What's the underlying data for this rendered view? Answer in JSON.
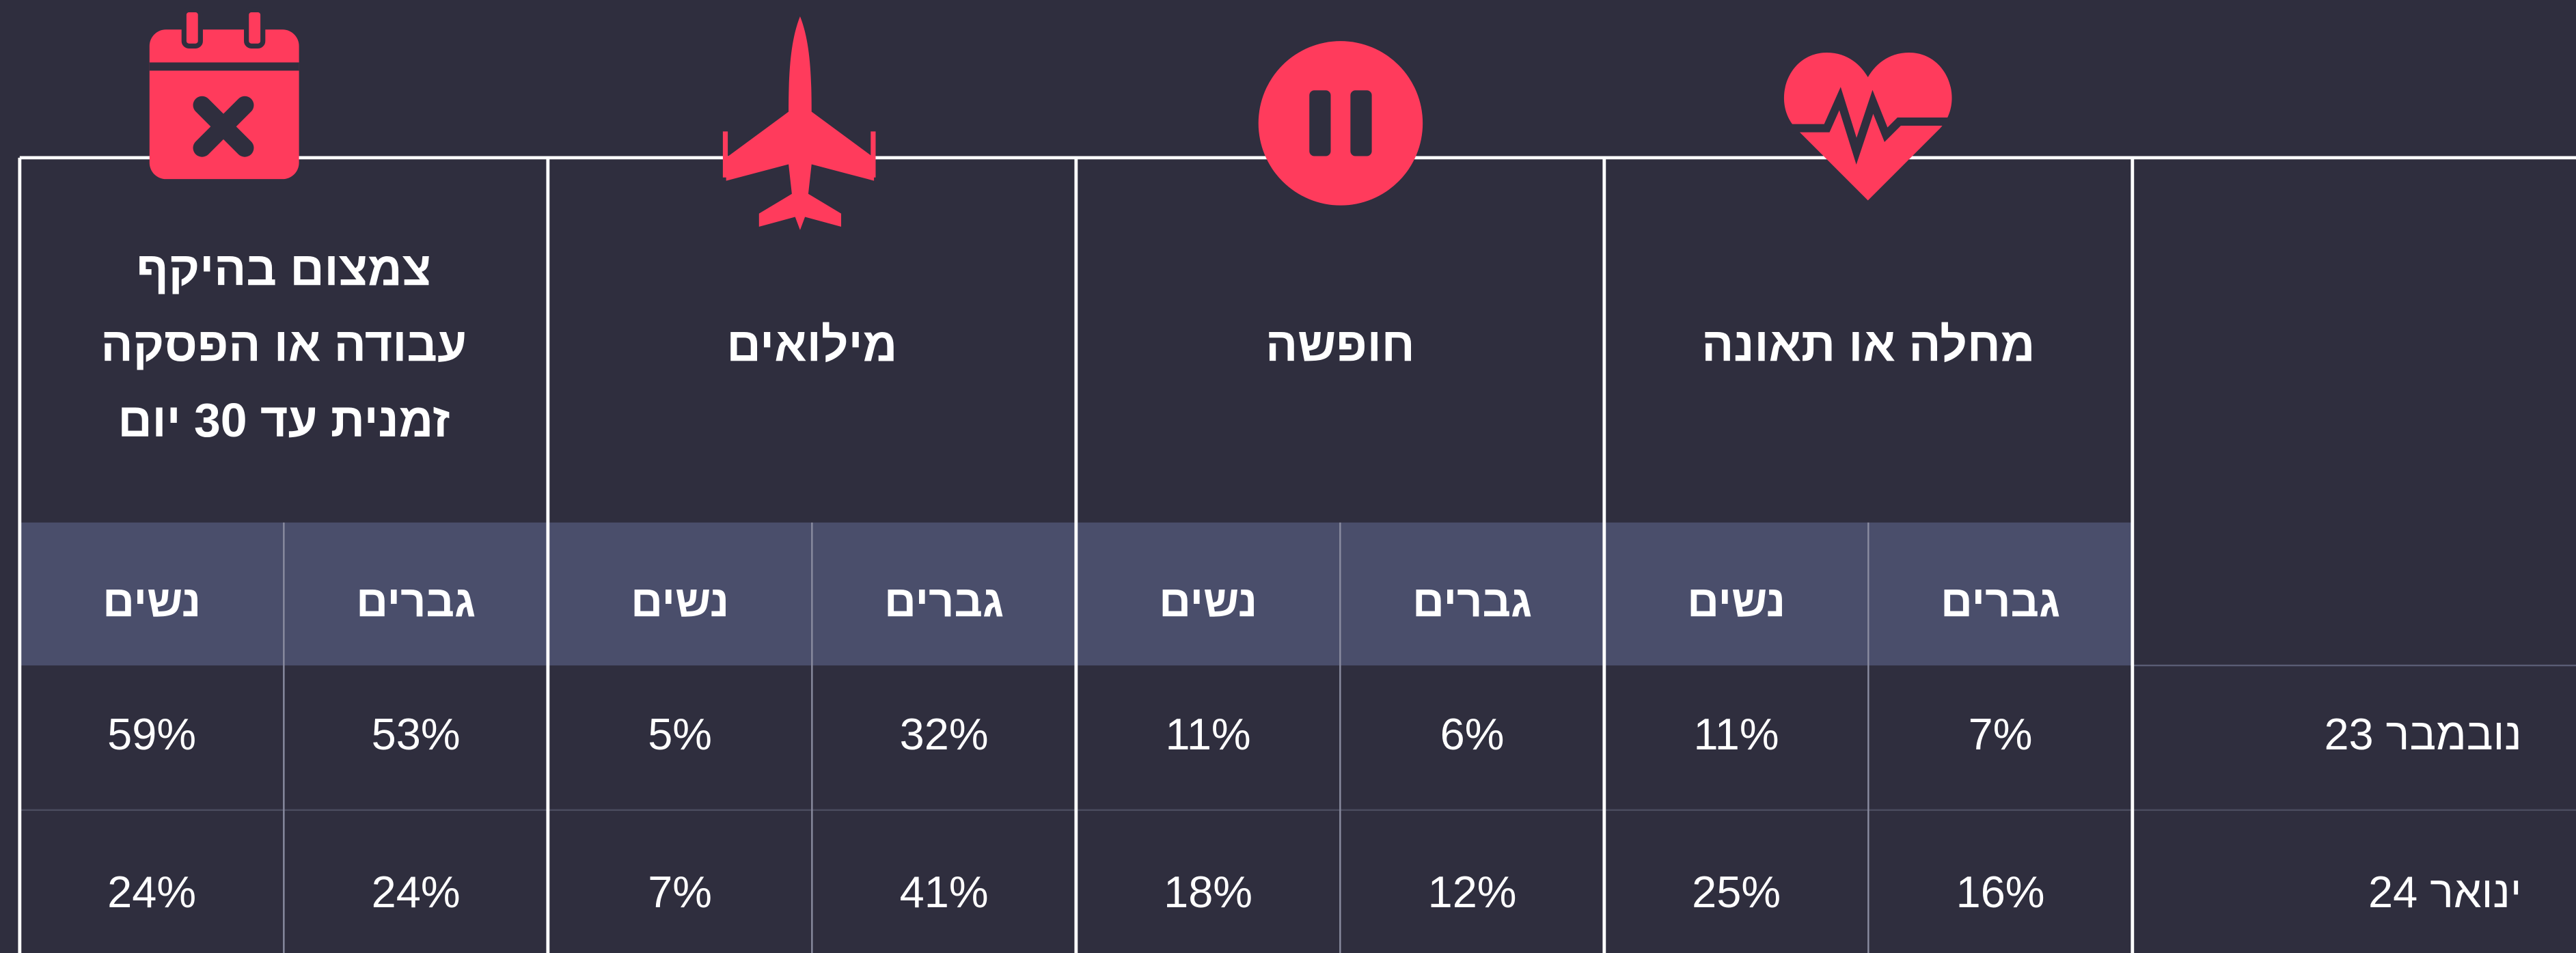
{
  "table": {
    "groups": [
      {
        "label_lines": [
          "מחלה או תאונה"
        ],
        "subheaders": [
          "גברים",
          "נשים"
        ]
      },
      {
        "label_lines": [
          "חופשה"
        ],
        "subheaders": [
          "גברים",
          "נשים"
        ]
      },
      {
        "label_lines": [
          "מילואים"
        ],
        "subheaders": [
          "גברים",
          "נשים"
        ]
      },
      {
        "label_lines": [
          "צמצום בהיקף",
          "עבודה או הפסקה",
          "זמנית עד 30 יום"
        ],
        "subheaders": [
          "גברים",
          "נשים"
        ]
      }
    ],
    "rows": [
      {
        "label": "נובמבר 23",
        "cells": [
          [
            "7%",
            "11%"
          ],
          [
            "6%",
            "11%"
          ],
          [
            "32%",
            "5%"
          ],
          [
            "53%",
            "59%"
          ]
        ]
      },
      {
        "label": "ינואר 24",
        "cells": [
          [
            "16%",
            "25%"
          ],
          [
            "12%",
            "18%"
          ],
          [
            "41%",
            "7%"
          ],
          [
            "24%",
            "24%"
          ]
        ]
      }
    ]
  }
}
